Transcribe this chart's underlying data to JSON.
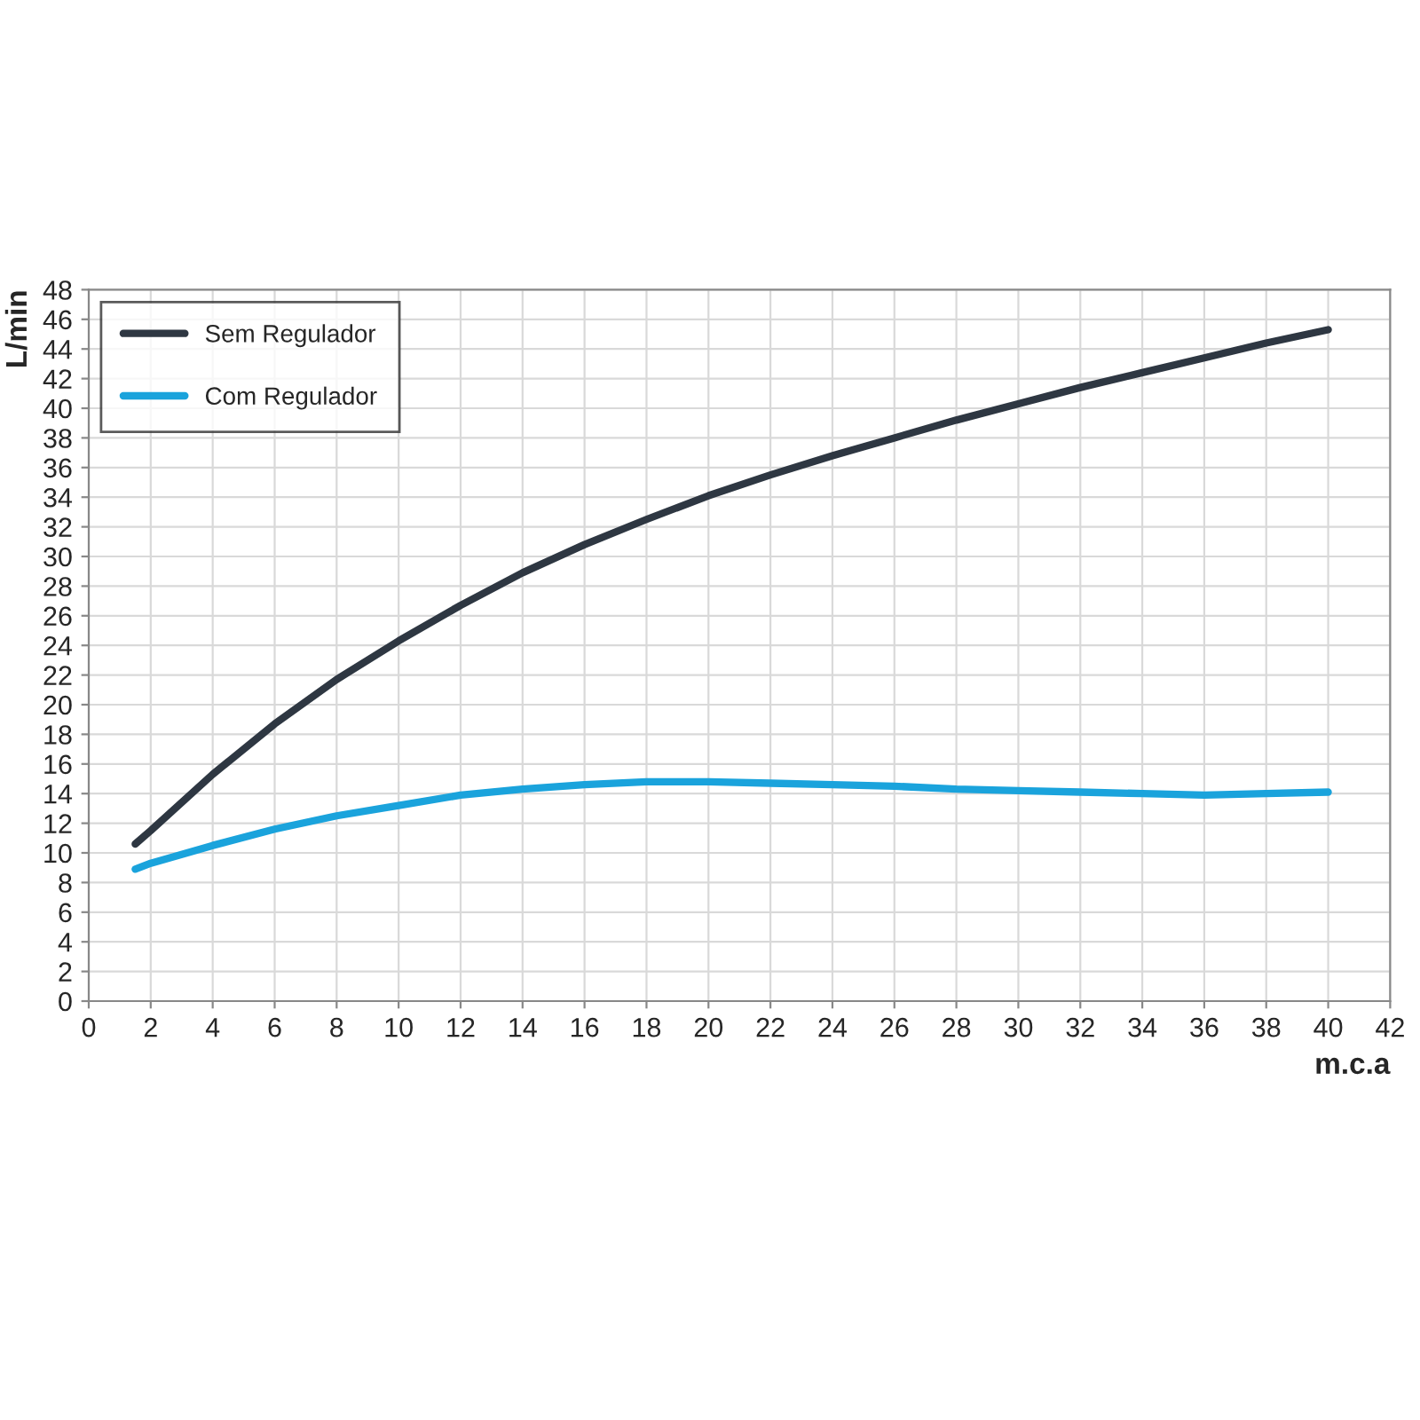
{
  "chart_data": {
    "type": "line",
    "xlabel": "m.c.a",
    "ylabel": "L/min",
    "xlim": [
      0,
      42
    ],
    "xticks": [
      0,
      2,
      4,
      6,
      8,
      10,
      12,
      14,
      16,
      18,
      20,
      22,
      24,
      26,
      28,
      30,
      32,
      34,
      36,
      38,
      40,
      42
    ],
    "ylim": [
      0,
      48
    ],
    "yticks": [
      0,
      2,
      4,
      6,
      8,
      10,
      12,
      14,
      16,
      18,
      20,
      22,
      24,
      26,
      28,
      30,
      32,
      34,
      36,
      38,
      40,
      42,
      44,
      46,
      48
    ],
    "grid": true,
    "legend": "top left",
    "marker": "none",
    "line_style": "solid",
    "x": [
      1.5,
      2,
      4,
      6,
      8,
      10,
      12,
      14,
      16,
      18,
      20,
      22,
      24,
      26,
      28,
      30,
      32,
      34,
      36,
      38,
      40
    ],
    "series": [
      {
        "name": "Sem Regulador",
        "color": "#2e3742",
        "values": [
          10.6,
          11.5,
          15.3,
          18.7,
          21.7,
          24.3,
          26.7,
          28.9,
          30.8,
          32.5,
          34.1,
          35.5,
          36.8,
          38.0,
          39.2,
          40.3,
          41.4,
          42.4,
          43.4,
          44.4,
          45.3
        ]
      },
      {
        "name": "Com Regulador",
        "color": "#1aa3dc",
        "values": [
          8.9,
          9.3,
          10.5,
          11.6,
          12.5,
          13.2,
          13.9,
          14.3,
          14.6,
          14.8,
          14.8,
          14.7,
          14.6,
          14.5,
          14.3,
          14.2,
          14.1,
          14.0,
          13.9,
          14.0,
          14.1
        ]
      }
    ]
  }
}
